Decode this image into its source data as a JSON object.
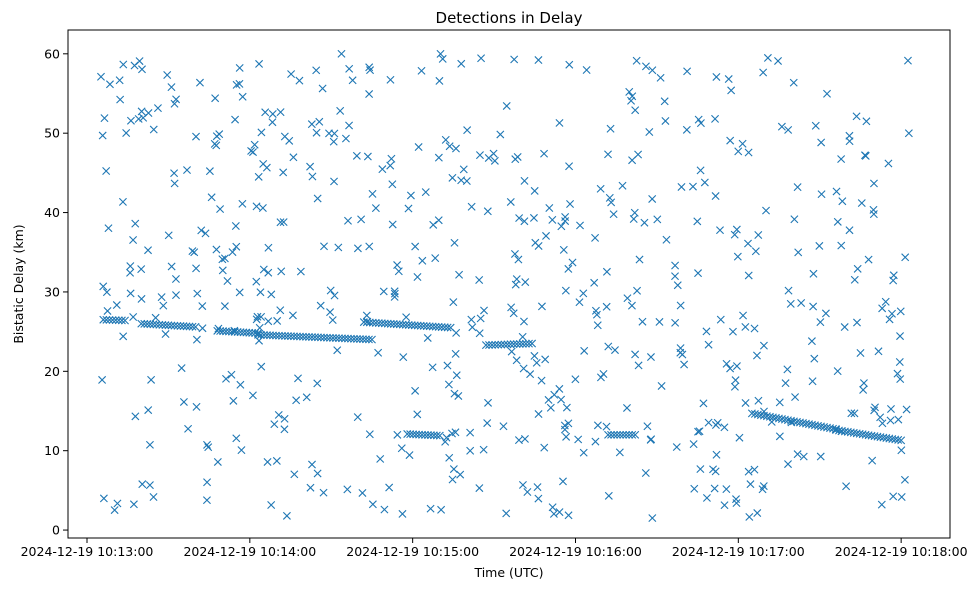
{
  "chart_data": {
    "type": "scatter",
    "title": "Detections in Delay",
    "xlabel": "Time (UTC)",
    "ylabel": "Bistatic Delay (km)",
    "x_tick_labels": [
      "2024-12-19 10:13:00",
      "2024-12-19 10:14:00",
      "2024-12-19 10:15:00",
      "2024-12-19 10:16:00",
      "2024-12-19 10:17:00",
      "2024-12-19 10:18:00"
    ],
    "y_ticks": [
      0,
      10,
      20,
      30,
      40,
      50,
      60
    ],
    "xlim": [
      "2024-12-19 10:12:53",
      "2024-12-19 10:18:18"
    ],
    "ylim": [
      -1,
      63
    ],
    "marker": "x",
    "color": "#1f77b4",
    "grid": false,
    "tracks": [
      {
        "x": [
          "10:13:06",
          "10:13:14"
        ],
        "y": [
          26.5,
          26.4
        ]
      },
      {
        "x": [
          "10:13:20",
          "10:13:40"
        ],
        "y": [
          26.0,
          25.6
        ]
      },
      {
        "x": [
          "10:13:48",
          "10:14:03"
        ],
        "y": [
          25.1,
          24.8
        ]
      },
      {
        "x": [
          "10:14:03",
          "10:14:45"
        ],
        "y": [
          24.6,
          24.0
        ]
      },
      {
        "x": [
          "10:14:42",
          "10:15:14"
        ],
        "y": [
          26.2,
          25.5
        ]
      },
      {
        "x": [
          "10:14:58",
          "10:15:10"
        ],
        "y": [
          12.1,
          11.9
        ]
      },
      {
        "x": [
          "10:17:05",
          "10:17:36"
        ],
        "y": [
          14.7,
          12.7
        ]
      },
      {
        "x": [
          "10:17:36",
          "10:18:00"
        ],
        "y": [
          12.6,
          11.3
        ]
      },
      {
        "x": [
          "10:15:27",
          "10:15:44"
        ],
        "y": [
          23.3,
          23.5
        ]
      },
      {
        "x": [
          "10:16:12",
          "10:16:22"
        ],
        "y": [
          12.0,
          12.0
        ]
      }
    ],
    "clutter": {
      "count": 620,
      "x_range": [
        "10:13:05",
        "10:18:03"
      ],
      "y_range": [
        1.5,
        60.0
      ]
    }
  }
}
